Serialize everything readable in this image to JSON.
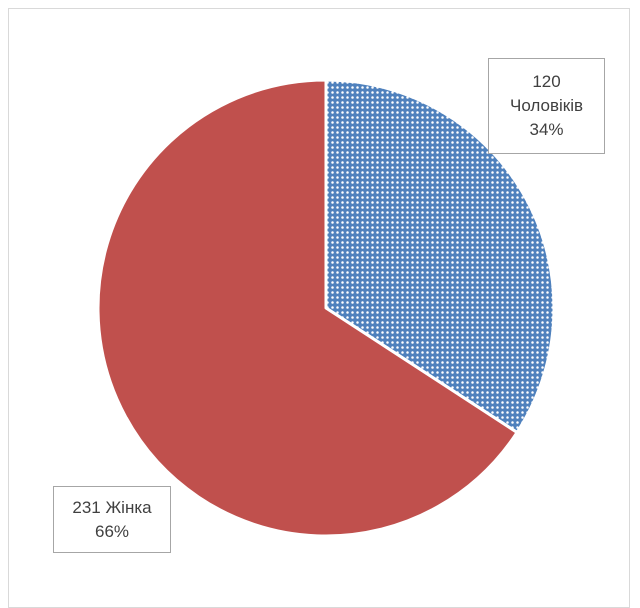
{
  "chart_data": {
    "type": "pie",
    "title": "",
    "slices": [
      {
        "label": "Чоловіків",
        "value": 120,
        "percent": "34%",
        "color": "#4f81bd",
        "fill_style": "dotted-pattern"
      },
      {
        "label": "Жінка",
        "value": 231,
        "percent": "66%",
        "color": "#c0504d",
        "fill_style": "solid"
      }
    ],
    "legend": "none",
    "start_angle": "12 o'clock",
    "direction": "clockwise"
  },
  "labels": {
    "men": {
      "value": "120",
      "name": "Чоловіків",
      "percent": "34%"
    },
    "women": {
      "value_name": "231 Жінка",
      "percent": "66%"
    }
  }
}
